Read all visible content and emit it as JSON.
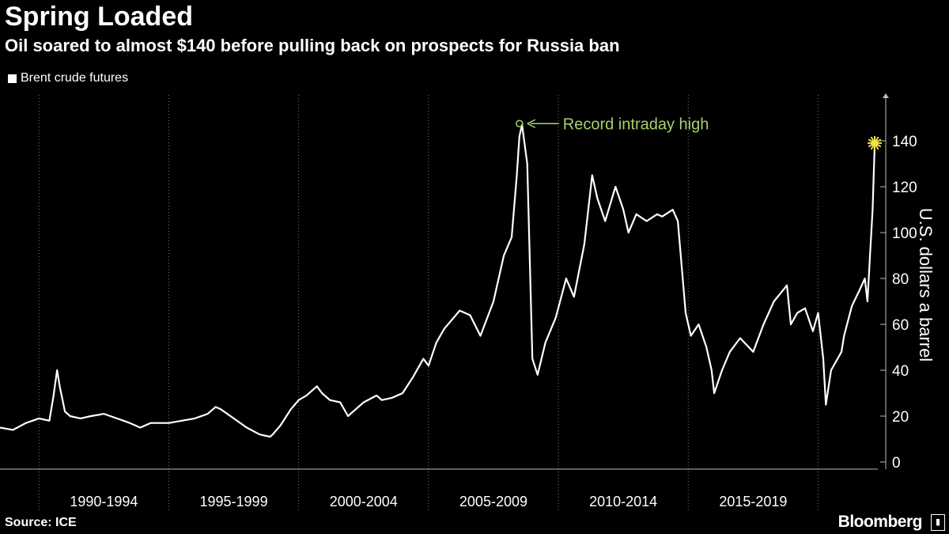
{
  "title": "Spring Loaded",
  "subtitle": "Oil soared to almost $140 before pulling back on prospects for Russia ban",
  "source": "Source: ICE",
  "brand": "Bloomberg",
  "colors": {
    "background": "#000000",
    "line": "#ffffff",
    "annotation": "#a8d26b",
    "marker": "#f2e34a"
  },
  "chart_data": {
    "type": "line",
    "title": "Spring Loaded",
    "subtitle": "Oil soared to almost $140 before pulling back on prospects for Russia ban",
    "ylabel": "U.S. dollars a barrel",
    "xlabel": "",
    "ylim": [
      0,
      150
    ],
    "xlim": [
      1988.5,
      2022.3
    ],
    "yticks": [
      0,
      20,
      40,
      60,
      80,
      100,
      120,
      140
    ],
    "x_period_labels": [
      "1990-1994",
      "1995-1999",
      "2000-2004",
      "2005-2009",
      "2010-2014",
      "2015-2019"
    ],
    "legend": {
      "position": "top-left",
      "entries": [
        "Brent crude futures"
      ]
    },
    "grid": "vertical dotted",
    "annotation": {
      "text": "Record intraday high",
      "x": 2008.5,
      "y": 147.5
    },
    "latest_marker": {
      "x": 2022.18,
      "y": 139
    },
    "series": [
      {
        "name": "Brent crude futures",
        "x": [
          1988.5,
          1989.0,
          1989.5,
          1990.0,
          1990.4,
          1990.55,
          1990.7,
          1990.8,
          1991.0,
          1991.2,
          1991.6,
          1992.0,
          1992.5,
          1993.0,
          1993.5,
          1993.9,
          1994.3,
          1994.7,
          1995.0,
          1995.5,
          1996.0,
          1996.5,
          1996.8,
          1997.0,
          1997.5,
          1998.0,
          1998.5,
          1998.9,
          1999.0,
          1999.3,
          1999.7,
          2000.0,
          2000.3,
          2000.7,
          2000.9,
          2001.2,
          2001.6,
          2001.9,
          2002.0,
          2002.5,
          2003.0,
          2003.2,
          2003.6,
          2004.0,
          2004.4,
          2004.8,
          2005.0,
          2005.3,
          2005.6,
          2005.9,
          2006.2,
          2006.6,
          2007.0,
          2007.5,
          2007.9,
          2008.2,
          2008.4,
          2008.5,
          2008.6,
          2008.8,
          2009.0,
          2009.2,
          2009.5,
          2009.9,
          2010.3,
          2010.6,
          2011.0,
          2011.3,
          2011.5,
          2011.8,
          2012.2,
          2012.5,
          2012.7,
          2013.0,
          2013.4,
          2013.8,
          2014.0,
          2014.4,
          2014.6,
          2014.9,
          2015.1,
          2015.4,
          2015.7,
          2015.9,
          2016.0,
          2016.3,
          2016.6,
          2017.0,
          2017.5,
          2017.9,
          2018.3,
          2018.8,
          2018.95,
          2019.2,
          2019.5,
          2019.8,
          2020.0,
          2020.2,
          2020.3,
          2020.5,
          2020.9,
          2021.0,
          2021.3,
          2021.6,
          2021.8,
          2021.9,
          2022.0,
          2022.1,
          2022.18
        ],
        "values": [
          15,
          14,
          17,
          19,
          18,
          28,
          40,
          33,
          22,
          20,
          19,
          20,
          21,
          19,
          17,
          15,
          17,
          17,
          17,
          18,
          19,
          21,
          24,
          23,
          19,
          15,
          12,
          11,
          12,
          16,
          23,
          27,
          29,
          33,
          30,
          27,
          26,
          20,
          21,
          26,
          29,
          27,
          28,
          30,
          37,
          45,
          42,
          52,
          58,
          62,
          66,
          64,
          55,
          70,
          90,
          98,
          125,
          142,
          147,
          130,
          45,
          38,
          52,
          63,
          80,
          72,
          95,
          125,
          115,
          105,
          120,
          110,
          100,
          108,
          105,
          108,
          107,
          110,
          105,
          65,
          55,
          60,
          50,
          40,
          30,
          40,
          48,
          54,
          48,
          60,
          70,
          77,
          60,
          65,
          67,
          57,
          65,
          45,
          25,
          40,
          48,
          55,
          68,
          75,
          80,
          70,
          90,
          110,
          139
        ]
      }
    ]
  }
}
